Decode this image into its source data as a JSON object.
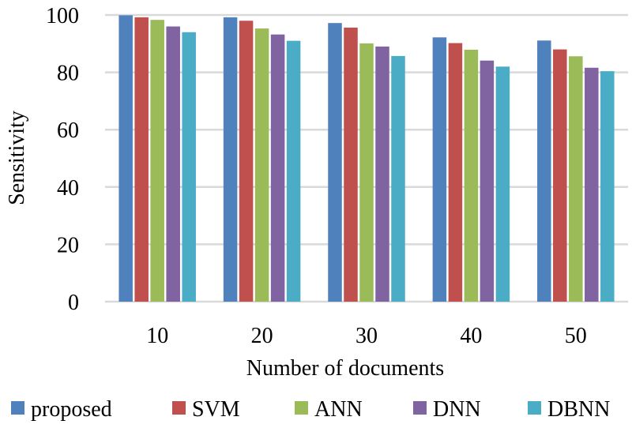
{
  "chart_data": {
    "type": "bar",
    "title": "",
    "xlabel": "Number of documents",
    "ylabel": "Sensitivity",
    "ylim": [
      0,
      100
    ],
    "yticks": [
      0,
      20,
      40,
      60,
      80,
      100
    ],
    "grid": true,
    "legend_position": "bottom",
    "categories": [
      "10",
      "20",
      "30",
      "40",
      "50"
    ],
    "series": [
      {
        "name": "proposed",
        "color": "#4f81bd",
        "values": [
          99.9,
          99.2,
          97.2,
          92.2,
          91.1
        ]
      },
      {
        "name": "SVM",
        "color": "#c0504d",
        "values": [
          99.2,
          98.0,
          95.6,
          90.2,
          88.0
        ]
      },
      {
        "name": "ANN",
        "color": "#9bbb59",
        "values": [
          98.3,
          95.3,
          90.1,
          87.9,
          85.6
        ]
      },
      {
        "name": "DNN",
        "color": "#8064a2",
        "values": [
          96.0,
          93.2,
          89.0,
          84.1,
          81.6
        ]
      },
      {
        "name": "DBNN",
        "color": "#4bacc6",
        "values": [
          94.0,
          91.0,
          85.7,
          82.0,
          80.4
        ]
      }
    ]
  }
}
